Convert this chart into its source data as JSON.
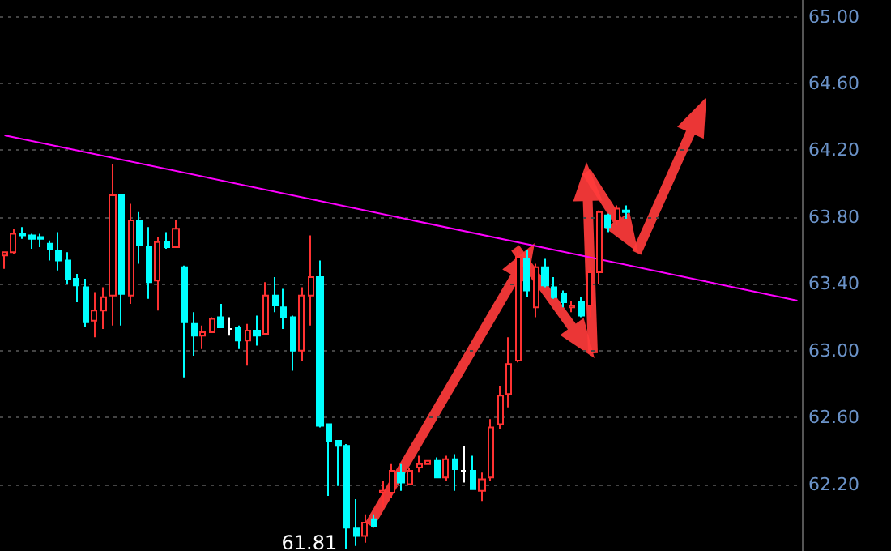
{
  "chart_data": {
    "type": "candlestick",
    "categories": [
      null,
      null,
      null,
      null,
      null,
      null,
      null,
      null,
      null,
      null,
      null,
      null,
      null,
      null,
      null,
      null,
      null,
      null,
      null,
      null,
      null,
      null,
      null,
      null,
      null,
      null,
      null,
      null,
      null,
      null,
      null,
      null,
      null,
      null,
      null,
      null,
      null,
      null,
      null,
      null,
      null,
      null,
      null,
      null,
      null,
      null,
      null,
      null,
      null,
      null,
      null,
      null,
      null,
      null,
      null,
      null,
      null,
      null,
      null,
      null,
      null,
      null,
      null,
      null,
      null,
      null,
      null,
      null,
      null,
      null,
      null,
      null,
      null,
      null,
      null,
      null,
      null,
      null,
      null,
      null,
      null,
      null,
      null,
      null,
      null,
      null,
      null,
      null,
      null
    ],
    "ohlc": [
      [
        63.57,
        63.59,
        63.49,
        63.59
      ],
      [
        63.59,
        63.73,
        63.58,
        63.7
      ],
      [
        63.7,
        63.74,
        63.67,
        63.69
      ],
      [
        63.69,
        63.7,
        63.61,
        63.67
      ],
      [
        63.68,
        63.7,
        63.62,
        63.67
      ],
      [
        63.64,
        63.66,
        63.54,
        63.61
      ],
      [
        63.6,
        63.71,
        63.48,
        63.54
      ],
      [
        63.54,
        63.59,
        63.4,
        63.43
      ],
      [
        63.43,
        63.46,
        63.29,
        63.39
      ],
      [
        63.38,
        63.43,
        63.14,
        63.17
      ],
      [
        63.18,
        63.35,
        63.08,
        63.24
      ],
      [
        63.24,
        63.38,
        63.13,
        63.32
      ],
      [
        63.33,
        64.12,
        63.15,
        63.93
      ],
      [
        63.93,
        63.94,
        63.15,
        63.34
      ],
      [
        63.33,
        63.88,
        63.28,
        63.78
      ],
      [
        63.78,
        63.83,
        63.52,
        63.63
      ],
      [
        63.62,
        63.74,
        63.31,
        63.41
      ],
      [
        63.42,
        63.68,
        63.24,
        63.65
      ],
      [
        63.65,
        63.71,
        63.61,
        63.62
      ],
      [
        63.62,
        63.78,
        63.62,
        63.73
      ],
      [
        63.5,
        63.51,
        62.84,
        63.17
      ],
      [
        63.16,
        63.23,
        62.97,
        63.09
      ],
      [
        63.09,
        63.15,
        63.01,
        63.11
      ],
      [
        63.11,
        63.2,
        63.11,
        63.19
      ],
      [
        63.2,
        63.28,
        63.14,
        63.14
      ],
      [
        63.13,
        63.2,
        63.09,
        63.13
      ],
      [
        63.14,
        63.15,
        63.01,
        63.06
      ],
      [
        63.06,
        63.16,
        62.91,
        63.12
      ],
      [
        63.12,
        63.21,
        63.03,
        63.09
      ],
      [
        63.1,
        63.41,
        63.1,
        63.33
      ],
      [
        63.33,
        63.44,
        63.23,
        63.27
      ],
      [
        63.26,
        63.37,
        63.13,
        63.2
      ],
      [
        63.2,
        63.21,
        62.88,
        63.0
      ],
      [
        63.0,
        63.38,
        62.94,
        63.33
      ],
      [
        63.33,
        63.69,
        63.15,
        63.44
      ],
      [
        63.44,
        63.54,
        62.54,
        62.55
      ],
      [
        62.56,
        62.56,
        62.13,
        62.46
      ],
      [
        62.46,
        62.46,
        62.19,
        62.43
      ],
      [
        62.43,
        62.44,
        61.81,
        61.94
      ],
      [
        61.94,
        62.11,
        61.83,
        61.89
      ],
      [
        61.89,
        62.02,
        61.85,
        61.97
      ],
      [
        61.99,
        62.02,
        61.95,
        61.95
      ],
      [
        62.15,
        62.22,
        62.06,
        62.16
      ],
      [
        62.15,
        62.32,
        62.12,
        62.28
      ],
      [
        62.27,
        62.32,
        62.16,
        62.21
      ],
      [
        62.2,
        62.3,
        62.2,
        62.28
      ],
      [
        62.3,
        62.37,
        62.27,
        62.32
      ],
      [
        62.32,
        62.34,
        62.32,
        62.34
      ],
      [
        62.34,
        62.36,
        62.24,
        62.24
      ],
      [
        62.24,
        62.37,
        62.22,
        62.35
      ],
      [
        62.35,
        62.38,
        62.16,
        62.29
      ],
      [
        62.28,
        62.43,
        62.21,
        62.28
      ],
      [
        62.28,
        62.37,
        62.17,
        62.17
      ],
      [
        62.16,
        62.27,
        62.1,
        62.23
      ],
      [
        62.24,
        62.59,
        62.22,
        62.54
      ],
      [
        62.56,
        62.79,
        62.53,
        62.73
      ],
      [
        62.74,
        63.08,
        62.66,
        62.92
      ],
      [
        62.94,
        63.6,
        62.93,
        63.56
      ],
      [
        63.55,
        63.6,
        63.32,
        63.36
      ],
      [
        63.26,
        63.52,
        63.2,
        63.5
      ],
      [
        63.5,
        63.55,
        63.38,
        63.39
      ],
      [
        63.38,
        63.44,
        63.31,
        63.32
      ],
      [
        63.34,
        63.36,
        63.26,
        63.29
      ],
      [
        63.26,
        63.3,
        63.23,
        63.27
      ],
      [
        63.29,
        63.32,
        63.2,
        63.21
      ],
      [
        63.27,
        63.5,
        63.2,
        63.47
      ],
      [
        63.47,
        63.84,
        63.4,
        63.83
      ],
      [
        63.81,
        63.82,
        63.71,
        63.74
      ],
      [
        63.78,
        63.87,
        63.75,
        63.85
      ],
      [
        63.84,
        63.87,
        63.79,
        63.83
      ],
      null,
      null,
      null,
      null,
      null,
      null,
      null,
      null,
      null,
      null,
      null,
      null,
      null,
      null,
      null,
      null,
      null,
      null,
      null
    ],
    "colors": [
      "#ff3232",
      "#ff3232",
      "#00ffff",
      "#00ffff",
      "#00ffff",
      "#00ffff",
      "#00ffff",
      "#00ffff",
      "#00ffff",
      "#00ffff",
      "#ff3232",
      "#ff3232",
      "#ff3232",
      "#00ffff",
      "#ff3232",
      "#00ffff",
      "#00ffff",
      "#ff3232",
      "#00ffff",
      "#ff3232",
      "#00ffff",
      "#00ffff",
      "#ff3232",
      "#ff3232",
      "#00ffff",
      "#ffffff",
      "#00ffff",
      "#ff3232",
      "#00ffff",
      "#ff3232",
      "#00ffff",
      "#00ffff",
      "#00ffff",
      "#ff3232",
      "#ff3232",
      "#00ffff",
      "#00ffff",
      "#00ffff",
      "#00ffff",
      "#00ffff",
      "#ff3232",
      "#00ffff",
      "#ff3232",
      "#ff3232",
      "#00ffff",
      "#ff3232",
      "#ff3232",
      "#ff3232",
      "#00ffff",
      "#ff3232",
      "#00ffff",
      "#ffffff",
      "#00ffff",
      "#ff3232",
      "#ff3232",
      "#ff3232",
      "#ff3232",
      "#ff3232",
      "#00ffff",
      "#ff3232",
      "#00ffff",
      "#00ffff",
      "#00ffff",
      "#ff3232",
      "#00ffff",
      "#ff3232",
      "#ff3232",
      "#00ffff",
      "#ff3232",
      "#00ffff",
      null,
      null,
      null,
      null,
      null,
      null,
      null,
      null,
      null,
      null,
      null,
      null,
      null,
      null,
      null,
      null,
      null,
      null,
      null
    ],
    "series": [
      {
        "type": "line",
        "color": "#ff00ff",
        "values": [
          64.29,
          null,
          null,
          null,
          null,
          null,
          null,
          null,
          null,
          null,
          null,
          null,
          null,
          null,
          null,
          null,
          null,
          null,
          null,
          null,
          null,
          null,
          null,
          null,
          null,
          null,
          null,
          null,
          null,
          null,
          null,
          null,
          null,
          null,
          null,
          null,
          null,
          null,
          null,
          null,
          null,
          null,
          null,
          null,
          null,
          null,
          null,
          null,
          null,
          null,
          null,
          null,
          null,
          null,
          null,
          null,
          null,
          null,
          null,
          null,
          null,
          null,
          null,
          null,
          null,
          null,
          null,
          null,
          null,
          null,
          null,
          null,
          null,
          null,
          null,
          null,
          null,
          null,
          null,
          null,
          null,
          null,
          null,
          null,
          null,
          null,
          null,
          null,
          63.3
        ]
      }
    ],
    "ylim": [
      61.8,
      65.1
    ],
    "yticks": [
      {
        "value": 62.2,
        "label": "62.20"
      },
      {
        "value": 62.6,
        "label": "62.60"
      },
      {
        "value": 63.0,
        "label": "63.00"
      },
      {
        "value": 63.4,
        "label": "63.40"
      },
      {
        "value": 63.8,
        "label": "63.80"
      },
      {
        "value": 64.2,
        "label": "64.20"
      },
      {
        "value": 64.6,
        "label": "64.60"
      },
      {
        "value": 65.0,
        "label": "65.00"
      }
    ],
    "grid": "y",
    "tick_labels": "y",
    "annotations": [
      "61.81"
    ]
  }
}
